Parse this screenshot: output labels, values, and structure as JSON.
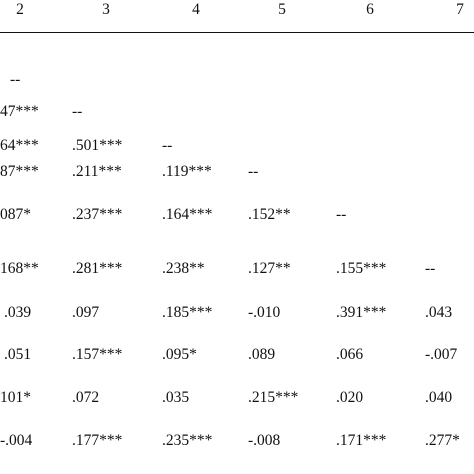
{
  "table": {
    "headers": [
      "2",
      "3",
      "4",
      "5",
      "6",
      "7"
    ],
    "rows": [
      [
        "--",
        "",
        "",
        "",
        "",
        ""
      ],
      [
        "47***",
        "--",
        "",
        "",
        "",
        ""
      ],
      [
        "64***",
        ".501***",
        "--",
        "",
        "",
        ""
      ],
      [
        "87***",
        ".211***",
        ".119***",
        "--",
        "",
        ""
      ],
      [
        "087*",
        ".237***",
        ".164***",
        ".152**",
        "--",
        ""
      ],
      [
        "168**",
        ".281***",
        ".238**",
        ".127**",
        ".155***",
        "--"
      ],
      [
        ".039",
        ".097",
        ".185***",
        "-.010",
        ".391***",
        ".043"
      ],
      [
        ".051",
        ".157***",
        ".095*",
        ".089",
        ".066",
        "-.007"
      ],
      [
        "101*",
        ".072",
        ".035",
        ".215***",
        ".020",
        ".040"
      ],
      [
        "-.004",
        ".177***",
        ".235***",
        "-.008",
        ".171***",
        ".277*"
      ]
    ]
  }
}
